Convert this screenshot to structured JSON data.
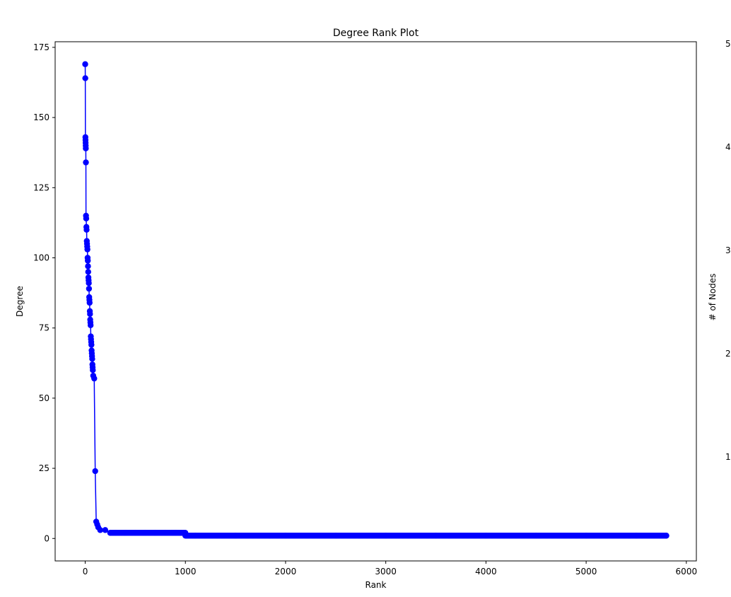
{
  "chart_data": [
    {
      "type": "line",
      "title": "Degree Rank Plot",
      "xlabel": "Rank",
      "ylabel": "Degree",
      "xlim": [
        -300,
        6100
      ],
      "ylim": [
        -8,
        177
      ],
      "xticks": [
        0,
        1000,
        2000,
        3000,
        4000,
        5000,
        6000
      ],
      "yticks": [
        0,
        25,
        50,
        75,
        100,
        125,
        150,
        175
      ],
      "grid": false,
      "series": [
        {
          "color": "#0000ff",
          "marker": "circle",
          "x": [
            0,
            1,
            2,
            3,
            4,
            5,
            6,
            7,
            8,
            10,
            12,
            14,
            16,
            18,
            20,
            22,
            24,
            26,
            28,
            30,
            32,
            34,
            36,
            38,
            40,
            42,
            44,
            46,
            48,
            50,
            52,
            54,
            56,
            58,
            60,
            62,
            64,
            66,
            68,
            70,
            72,
            74,
            76,
            80,
            90,
            100,
            110,
            120,
            130,
            150,
            200,
            250,
            300,
            400,
            500,
            600,
            700,
            800,
            900,
            1000,
            1010,
            1100,
            1500,
            2000,
            2500,
            3000,
            3500,
            4000,
            4500,
            5000,
            5500,
            5800
          ],
          "y": [
            169,
            164,
            143,
            142,
            141,
            140,
            139,
            134,
            115,
            114,
            111,
            110,
            106,
            105,
            104,
            103,
            100,
            99,
            97,
            95,
            93,
            92,
            91,
            89,
            86,
            85,
            84,
            81,
            80,
            78,
            77,
            76,
            72,
            71,
            70,
            69,
            67,
            66,
            65,
            64,
            62,
            61,
            60,
            58,
            57,
            24,
            6,
            5,
            4,
            3,
            3,
            2,
            2,
            2,
            2,
            2,
            2,
            2,
            2,
            2,
            1,
            1,
            1,
            1,
            1,
            1,
            1,
            1,
            1,
            1,
            1,
            1
          ],
          "x_note_unused": null
        }
      ]
    },
    {
      "type": "bar",
      "ylabel": "# of Nodes",
      "visible_tick_fragments": [
        "5",
        "4",
        "3",
        "2",
        "1"
      ],
      "partial": true
    }
  ]
}
